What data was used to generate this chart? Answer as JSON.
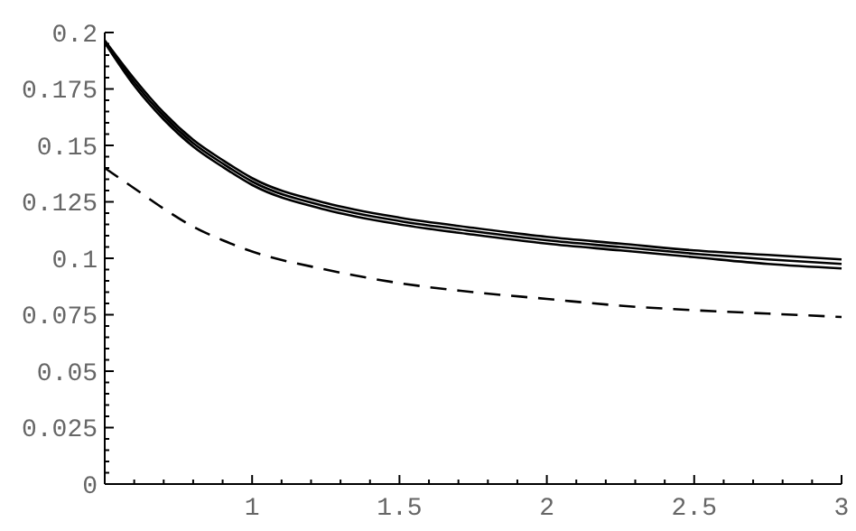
{
  "chart_data": {
    "type": "line",
    "line_style": "solid",
    "xlim": [
      0.5,
      3
    ],
    "ylim": [
      0,
      0.2
    ],
    "xticks": [
      {
        "value": 0.6,
        "label": null
      },
      {
        "value": 0.7,
        "label": null
      },
      {
        "value": 0.8,
        "label": null
      },
      {
        "value": 0.9,
        "label": null
      },
      1,
      {
        "value": 1.1,
        "label": null
      },
      {
        "value": 1.2,
        "label": null
      },
      {
        "value": 1.3,
        "label": null
      },
      {
        "value": 1.4,
        "label": null
      },
      1.5,
      {
        "value": 1.6,
        "label": null
      },
      {
        "value": 1.7,
        "label": null
      },
      {
        "value": 1.8,
        "label": null
      },
      {
        "value": 1.9,
        "label": null
      },
      2,
      {
        "value": 2.1,
        "label": null
      },
      {
        "value": 2.2,
        "label": null
      },
      {
        "value": 2.3,
        "label": null
      },
      {
        "value": 2.4,
        "label": null
      },
      2.5,
      {
        "value": 2.6,
        "label": null
      },
      {
        "value": 2.7,
        "label": null
      },
      {
        "value": 2.8,
        "label": null
      },
      {
        "value": 2.9,
        "label": null
      },
      3
    ],
    "yticks": [
      0,
      {
        "value": 0.005,
        "label": null
      },
      {
        "value": 0.01,
        "label": null
      },
      {
        "value": 0.015,
        "label": null
      },
      {
        "value": 0.02,
        "label": null
      },
      0.025,
      {
        "value": 0.03,
        "label": null
      },
      {
        "value": 0.035,
        "label": null
      },
      {
        "value": 0.04,
        "label": null
      },
      {
        "value": 0.045,
        "label": null
      },
      0.05,
      {
        "value": 0.055,
        "label": null
      },
      {
        "value": 0.06,
        "label": null
      },
      {
        "value": 0.065,
        "label": null
      },
      {
        "value": 0.07,
        "label": null
      },
      0.075,
      {
        "value": 0.08,
        "label": null
      },
      {
        "value": 0.085,
        "label": null
      },
      {
        "value": 0.09,
        "label": null
      },
      {
        "value": 0.095,
        "label": null
      },
      0.1,
      {
        "value": 0.105,
        "label": null
      },
      {
        "value": 0.11,
        "label": null
      },
      {
        "value": 0.115,
        "label": null
      },
      {
        "value": 0.12,
        "label": null
      },
      0.125,
      {
        "value": 0.13,
        "label": null
      },
      {
        "value": 0.135,
        "label": null
      },
      {
        "value": 0.14,
        "label": null
      },
      {
        "value": 0.145,
        "label": null
      },
      0.15,
      {
        "value": 0.155,
        "label": null
      },
      {
        "value": 0.16,
        "label": null
      },
      {
        "value": 0.165,
        "label": null
      },
      {
        "value": 0.17,
        "label": null
      },
      0.175,
      {
        "value": 0.18,
        "label": null
      },
      {
        "value": 0.185,
        "label": null
      },
      {
        "value": 0.19,
        "label": null
      },
      {
        "value": 0.195,
        "label": null
      },
      0.2
    ],
    "x": [
      0.5,
      0.6,
      0.7,
      0.8,
      0.9,
      1,
      1.25,
      1.5,
      1.75,
      2,
      2.25,
      2.5,
      2.75,
      3
    ],
    "series": [
      {
        "color": "#000000",
        "values": [
          0.1965,
          0.1795,
          0.1645,
          0.1525,
          0.1435,
          0.1355,
          0.1245,
          0.118,
          0.1135,
          0.1095,
          0.1065,
          0.1035,
          0.1015,
          0.0995
        ]
      },
      {
        "color": "#000000",
        "values": [
          0.196,
          0.178,
          0.163,
          0.151,
          0.142,
          0.134,
          0.123,
          0.1165,
          0.112,
          0.108,
          0.105,
          0.102,
          0.0995,
          0.0975
        ]
      },
      {
        "color": "#000000",
        "values": [
          0.1955,
          0.1765,
          0.1615,
          0.1495,
          0.1405,
          0.1325,
          0.1215,
          0.115,
          0.1105,
          0.1065,
          0.1035,
          0.1005,
          0.0975,
          0.0955
        ]
      },
      {
        "color": "#000000",
        "line_style": "dashed",
        "values": [
          0.14,
          0.131,
          0.122,
          0.114,
          0.108,
          0.103,
          0.095,
          0.089,
          0.085,
          0.082,
          0.079,
          0.077,
          0.0755,
          0.074
        ]
      }
    ]
  }
}
